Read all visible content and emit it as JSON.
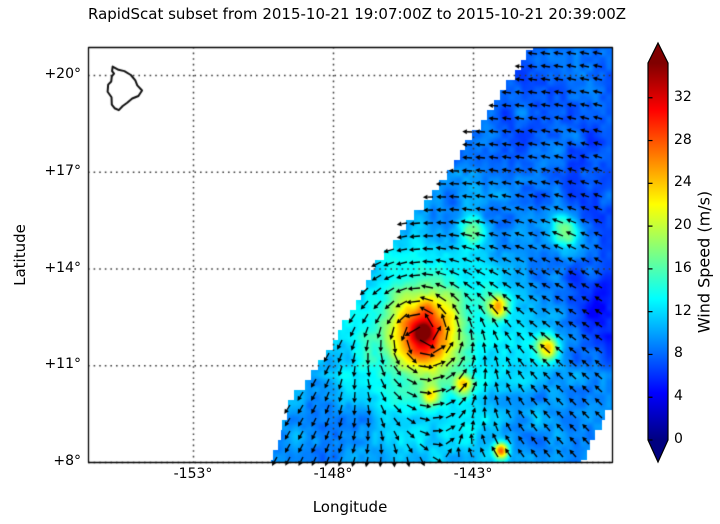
{
  "title": "RapidScat subset from 2015-10-21 19:07:00Z to 2015-10-21 20:39:00Z",
  "axes": {
    "xlabel": "Longitude",
    "ylabel": "Latitude",
    "x_ticks": [
      {
        "label": "-153°",
        "value": -153
      },
      {
        "label": "-148°",
        "value": -148
      },
      {
        "label": "-143°",
        "value": -143
      }
    ],
    "y_ticks": [
      {
        "label": "+20°",
        "value": 20
      },
      {
        "label": "+17°",
        "value": 17
      },
      {
        "label": "+14°",
        "value": 14
      },
      {
        "label": "+11°",
        "value": 11
      },
      {
        "label": "+8°",
        "value": 8
      }
    ]
  },
  "colorbar": {
    "label": "Wind Speed (m/s)",
    "colormap": "jet",
    "extend": "both",
    "vmin": 0,
    "vmax": 35.25,
    "ticks": [
      {
        "label": "0",
        "value": 0
      },
      {
        "label": "4",
        "value": 4
      },
      {
        "label": "8",
        "value": 8
      },
      {
        "label": "12",
        "value": 12
      },
      {
        "label": "16",
        "value": 16
      },
      {
        "label": "20",
        "value": 20
      },
      {
        "label": "24",
        "value": 24
      },
      {
        "label": "28",
        "value": 28
      },
      {
        "label": "32",
        "value": 32
      }
    ]
  },
  "chart_data": {
    "type": "heatmap",
    "title": "RapidScat subset from 2015-10-21 19:07:00Z to 2015-10-21 20:39:00Z",
    "xlabel": "Longitude",
    "ylabel": "Latitude",
    "units": "m/s",
    "xlim": [
      -156.75,
      -138.04
    ],
    "ylim": [
      8.0,
      20.87
    ],
    "x_ticks": [
      -153,
      -148,
      -143
    ],
    "y_ticks": [
      8,
      11,
      14,
      17,
      20
    ],
    "grid": "dotted",
    "legend_position": "right-colorbar",
    "description": "RapidScat ocean-surface wind speed swath (diagonal band) with black wind-direction arrows; counterclockwise tropical-cyclone circulation; easterly trade winds (westward arrows) across the north of the swath; Island of Hawaii outline at upper left",
    "storm_center": {
      "lon": -144.78,
      "lat": 12.0,
      "peak_wind_ms": 34
    },
    "speed_model": {
      "background_base": 7.5,
      "background_south_boost": 1.2,
      "vortex_amp": 20,
      "vortex_radius_deg": 1.05,
      "vortex_power": 1.8,
      "outer_amp": 7,
      "outer_radius_deg": 3.8,
      "noise_amp": 3,
      "bumps": [
        [
          -144.78,
          12.02,
          8,
          0.24
        ],
        [
          -144.6,
          12.75,
          3,
          0.28
        ],
        [
          -142.1,
          12.8,
          13,
          0.38
        ],
        [
          -143.35,
          10.4,
          11,
          0.34
        ],
        [
          -144.5,
          10.05,
          8,
          0.3
        ],
        [
          -140.35,
          11.55,
          15,
          0.42
        ],
        [
          -139.7,
          15.1,
          11,
          0.5
        ],
        [
          -143.0,
          15.2,
          8,
          0.45
        ],
        [
          -142.0,
          8.35,
          17,
          0.26
        ],
        [
          -138.6,
          12.8,
          -4.5,
          1.0
        ],
        [
          -147.3,
          9.2,
          -1.5,
          1.2
        ]
      ]
    },
    "flow_model": {
      "rotation": "counterclockwise",
      "tangential_base": 4,
      "tangential_amp": 20,
      "tangential_radius_deg": 1.6,
      "tangential_power": 1.4,
      "ambient_u": -4.6,
      "ambient_v": -0.7,
      "ambient_suppression": 0.8,
      "ambient_suppression_radius_deg": 2.5
    },
    "swath": {
      "step_deg": 0.31,
      "left_boundary": [
        [
          -150.2,
          8.0
        ],
        [
          -149.5,
          9.9
        ],
        [
          -148.3,
          11.2
        ],
        [
          -146.4,
          14.17
        ],
        [
          -144.36,
          16.43
        ],
        [
          -140.86,
          20.87
        ]
      ],
      "right_boundary": [
        [
          -139.07,
          8.0
        ],
        [
          -138.04,
          9.86
        ],
        [
          -131.9,
          21.0
        ]
      ]
    },
    "island": {
      "label": "Island of Hawaii coastline",
      "outline": [
        [
          -155.87,
          20.26
        ],
        [
          -155.66,
          20.16
        ],
        [
          -155.45,
          20.12
        ],
        [
          -155.22,
          20.0
        ],
        [
          -155.06,
          19.83
        ],
        [
          -154.99,
          19.68
        ],
        [
          -154.82,
          19.52
        ],
        [
          -154.95,
          19.35
        ],
        [
          -155.17,
          19.27
        ],
        [
          -155.35,
          19.14
        ],
        [
          -155.51,
          19.04
        ],
        [
          -155.65,
          18.91
        ],
        [
          -155.8,
          18.97
        ],
        [
          -155.9,
          19.08
        ],
        [
          -155.91,
          19.31
        ],
        [
          -156.05,
          19.48
        ],
        [
          -156.03,
          19.7
        ],
        [
          -155.92,
          19.8
        ],
        [
          -155.9,
          19.96
        ],
        [
          -155.82,
          20.04
        ],
        [
          -155.89,
          20.12
        ]
      ]
    }
  }
}
